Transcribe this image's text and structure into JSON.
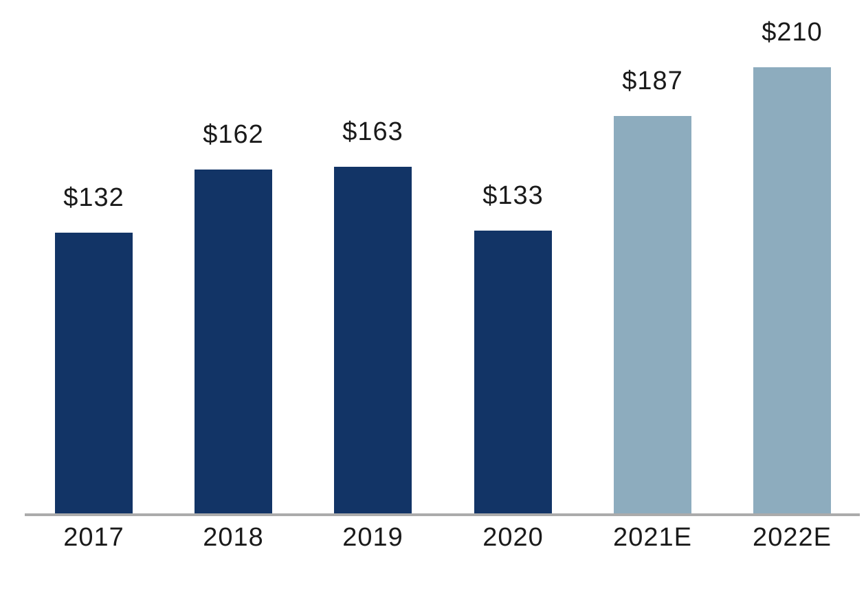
{
  "chart_data": {
    "type": "bar",
    "categories": [
      "2017",
      "2018",
      "2019",
      "2020",
      "2021E",
      "2022E"
    ],
    "values": [
      132,
      162,
      163,
      133,
      187,
      210
    ],
    "value_labels": [
      "$132",
      "$162",
      "$163",
      "$133",
      "$187",
      "$210"
    ],
    "bar_colors": [
      "#123466",
      "#123466",
      "#123466",
      "#123466",
      "#8DACBE",
      "#8DACBE"
    ],
    "title": "",
    "xlabel": "",
    "ylabel": "",
    "ylim": [
      0,
      215
    ],
    "grid": false,
    "legend_position": "none",
    "colors": {
      "actual_bar": "#123466",
      "estimate_bar": "#8DACBE",
      "axis_line": "#ABABAB",
      "label_text": "#1A1A1A",
      "background": "#FFFFFF"
    }
  }
}
